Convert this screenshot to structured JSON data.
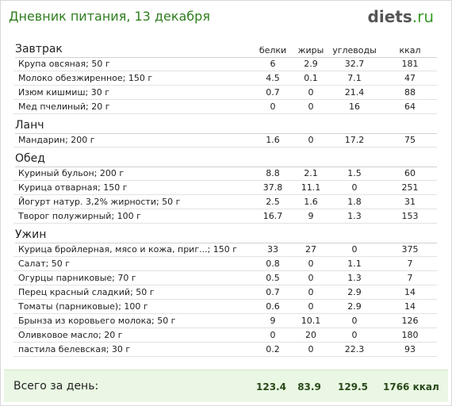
{
  "header": {
    "title": "Дневник питания, 13 декабря",
    "logo": {
      "main": "diets",
      "suffix": ".ru"
    }
  },
  "columns": [
    "белки",
    "жиры",
    "углеводы",
    "ккал"
  ],
  "sections": [
    {
      "name": "Завтрак",
      "rows": [
        {
          "name": "Крупа овсяная; 50 г",
          "values": [
            "6",
            "2.9",
            "32.7",
            "181"
          ]
        },
        {
          "name": "Молоко обезжиренное; 150 г",
          "values": [
            "4.5",
            "0.1",
            "7.1",
            "47"
          ]
        },
        {
          "name": "Изюм кишмиш; 30 г",
          "values": [
            "0.7",
            "0",
            "21.4",
            "88"
          ]
        },
        {
          "name": "Мед пчелиный; 20 г",
          "values": [
            "0",
            "0",
            "16",
            "64"
          ]
        }
      ]
    },
    {
      "name": "Ланч",
      "rows": [
        {
          "name": "Мандарин; 200 г",
          "values": [
            "1.6",
            "0",
            "17.2",
            "75"
          ]
        }
      ]
    },
    {
      "name": "Обед",
      "rows": [
        {
          "name": "Куриный бульон; 200 г",
          "values": [
            "8.8",
            "2.1",
            "1.5",
            "60"
          ]
        },
        {
          "name": "Курица отварная; 150 г",
          "values": [
            "37.8",
            "11.1",
            "0",
            "251"
          ]
        },
        {
          "name": "Йогурт натур. 3,2% жирности; 50 г",
          "values": [
            "2.5",
            "1.6",
            "1.8",
            "31"
          ]
        },
        {
          "name": "Творог полужирный; 100 г",
          "values": [
            "16.7",
            "9",
            "1.3",
            "153"
          ]
        }
      ]
    },
    {
      "name": "Ужин",
      "rows": [
        {
          "name": "Курица бройлерная, мясо и кожа, приг...; 150 г",
          "values": [
            "33",
            "27",
            "0",
            "375"
          ]
        },
        {
          "name": "Салат; 50 г",
          "values": [
            "0.8",
            "0",
            "1.1",
            "7"
          ]
        },
        {
          "name": "Огурцы парниковые; 70 г",
          "values": [
            "0.5",
            "0",
            "1.3",
            "7"
          ]
        },
        {
          "name": "Перец красный сладкий; 50 г",
          "values": [
            "0.7",
            "0",
            "2.9",
            "14"
          ]
        },
        {
          "name": "Томаты (парниковые); 100 г",
          "values": [
            "0.6",
            "0",
            "2.9",
            "14"
          ]
        },
        {
          "name": "Брынза из коровьего молока; 50 г",
          "values": [
            "9",
            "10.1",
            "0",
            "126"
          ]
        },
        {
          "name": "Оливковое масло; 20 г",
          "values": [
            "0",
            "20",
            "0",
            "180"
          ]
        },
        {
          "name": "пастила белевская; 30 г",
          "values": [
            "0.2",
            "0",
            "22.3",
            "93"
          ]
        }
      ]
    }
  ],
  "total": {
    "label": "Всего за день:",
    "values": [
      "123.4",
      "83.9",
      "129.5",
      "1766 ккал"
    ]
  }
}
